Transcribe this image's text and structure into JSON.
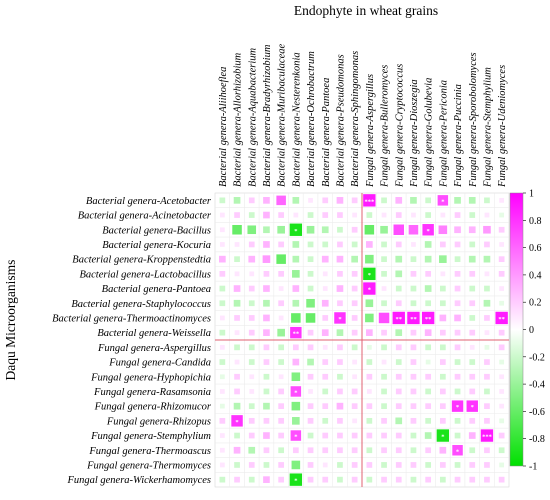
{
  "chart_data": {
    "type": "heatmap",
    "title": "Endophyte in wheat grains",
    "ylabel": "Daqu Microorganisms",
    "columns": [
      "Bacterial genera-Aliihoeflea",
      "Bacterial genera-Allorhizobium",
      "Bacterial genera-Aquabacterium",
      "Bacterial genera-Bradyrhizobium",
      "Bacterial genera-Muribaculaceae",
      "Bacterial genera-Nesterenkonia",
      "Bacterial genera-Ochrobactrum",
      "Bacterial genera-Pantoea",
      "Bacterial genera-Pseudomonas",
      "Bacterial genera-Sphingomonas",
      "Fungal genera-Aspergillus",
      "Fungal genera-Bulleromyces",
      "Fungal genera-Cryptococcus",
      "Fungal genera-Dioszegia",
      "Fungal genera-Golubevia",
      "Fungal genera-Periconia",
      "Fungal genera-Puccinia",
      "Fungal genera-Sporobolomyces",
      "Fungal genera-Stemphylium",
      "Fungal genera-Udeniomyces"
    ],
    "rows": [
      "Bacterial genera-Acetobacter",
      "Bacterial genera-Acinetobacter",
      "Bacterial genera-Bacillus",
      "Bacterial genera-Kocuria",
      "Bacterial genera-Kroppenstedtia",
      "Bacterial genera-Lactobacillus",
      "Bacterial genera-Pantoea",
      "Bacterial genera-Staphylococcus",
      "Bacterial genera-Thermoactinomyces",
      "Bacterial genera-Weissella",
      "Fungal genera-Aspergillus",
      "Fungal genera-Candida",
      "Fungal genera-Hyphopichia",
      "Fungal genera-Rasamsonia",
      "Fungal genera-Rhizomucor",
      "Fungal genera-Rhizopus",
      "Fungal genera-Stemphylium",
      "Fungal genera-Thermoascus",
      "Fungal genera-Thermomyces",
      "Fungal genera-Wickerhamomyces"
    ],
    "values": [
      [
        -0.2,
        -0.3,
        0.2,
        0.3,
        0.6,
        -0.3,
        0.1,
        0.2,
        0.3,
        0.2,
        0.9,
        -0.2,
        0.3,
        -0.3,
        -0.2,
        0.7,
        -0.3,
        -0.3,
        -0.2,
        0.1
      ],
      [
        0.1,
        0.2,
        -0.2,
        0.3,
        0.2,
        0.1,
        -0.2,
        0.2,
        0.2,
        0.1,
        -0.2,
        0.1,
        0.2,
        0.1,
        -0.2,
        0.1,
        0.2,
        -0.2,
        0.1,
        -0.1
      ],
      [
        0.1,
        -0.6,
        -0.5,
        -0.3,
        -0.4,
        -0.9,
        -0.4,
        -0.3,
        -0.2,
        0.2,
        -0.6,
        -0.4,
        0.7,
        0.6,
        0.8,
        0.5,
        0.3,
        0.3,
        0.4,
        0.2
      ],
      [
        0.1,
        0.1,
        0.2,
        0.3,
        0.2,
        -0.3,
        -0.2,
        -0.2,
        0.2,
        -0.2,
        0.3,
        -0.2,
        0.2,
        0.1,
        -0.3,
        0.2,
        0.2,
        -0.2,
        0.2,
        0.1
      ],
      [
        0.3,
        -0.2,
        0.3,
        0.4,
        -0.6,
        -0.3,
        -0.2,
        0.3,
        0.3,
        -0.3,
        -0.5,
        -0.2,
        -0.3,
        -0.2,
        -0.3,
        -0.4,
        -0.2,
        -0.3,
        -0.3,
        0.2
      ],
      [
        0.2,
        0.1,
        0.1,
        0.2,
        0.2,
        -0.4,
        -0.2,
        0.1,
        0.2,
        0.2,
        -0.9,
        -0.2,
        -0.3,
        0.2,
        0.2,
        0.1,
        0.2,
        0.2,
        0.1,
        0.2
      ],
      [
        -0.2,
        0.3,
        0.2,
        0.3,
        0.1,
        0.3,
        -0.2,
        0.1,
        0.3,
        0.2,
        0.9,
        0.1,
        -0.2,
        -0.2,
        -0.3,
        -0.2,
        0.2,
        -0.2,
        -0.2,
        0.1
      ],
      [
        -0.2,
        -0.3,
        -0.2,
        -0.3,
        0.2,
        -0.3,
        -0.5,
        0.3,
        0.2,
        0.2,
        -0.4,
        -0.2,
        0.2,
        -0.2,
        -0.2,
        -0.2,
        0.2,
        0.2,
        -0.3,
        -0.1
      ],
      [
        0.1,
        0.2,
        0.2,
        0.3,
        0.1,
        -0.6,
        -0.6,
        0.2,
        0.8,
        0.2,
        -0.5,
        0.7,
        0.9,
        0.9,
        0.9,
        0.3,
        0.3,
        -0.2,
        0.2,
        0.9
      ],
      [
        -0.2,
        0.1,
        0.2,
        0.3,
        -0.4,
        0.8,
        0.2,
        0.3,
        -0.3,
        0.2,
        0.3,
        0.2,
        -0.3,
        0.2,
        0.3,
        0.2,
        0.2,
        0.2,
        0.1,
        0.2
      ],
      [
        0.1,
        -0.2,
        -0.2,
        0.2,
        -0.2,
        0.2,
        0.2,
        0.1,
        0.2,
        -0.2,
        -0.1,
        -0.2,
        0.2,
        0.2,
        -0.2,
        -0.2,
        0.2,
        0.1,
        -0.1,
        0.2
      ],
      [
        -0.2,
        0.1,
        -0.2,
        0.2,
        -0.2,
        0.3,
        -0.3,
        0.2,
        0.2,
        0.1,
        -0.2,
        0.1,
        -0.2,
        0.2,
        -0.1,
        0.2,
        -0.2,
        -0.2,
        0.2,
        -0.1
      ],
      [
        -0.1,
        0.2,
        0.1,
        -0.2,
        0.1,
        -0.5,
        0.2,
        0.2,
        -0.2,
        0.1,
        0.2,
        -0.2,
        0.2,
        0.2,
        0.2,
        -0.2,
        0.2,
        0.2,
        0.2,
        0.1
      ],
      [
        0.1,
        0.2,
        0.1,
        -0.2,
        0.2,
        0.7,
        0.1,
        -0.2,
        0.2,
        0.2,
        0.1,
        -0.2,
        0.2,
        0.2,
        -0.2,
        0.2,
        -0.2,
        0.2,
        -0.2,
        0.1
      ],
      [
        -0.1,
        -0.3,
        -0.2,
        -0.3,
        0.2,
        -0.5,
        0.2,
        0.2,
        0.3,
        0.2,
        0.2,
        -0.2,
        0.2,
        0.2,
        0.2,
        0.2,
        0.8,
        0.8,
        0.2,
        0.1
      ],
      [
        0.2,
        0.8,
        0.2,
        0.2,
        0.2,
        -0.4,
        0.2,
        -0.2,
        0.2,
        0.1,
        -0.2,
        0.2,
        -0.3,
        0.2,
        -0.2,
        0.2,
        -0.2,
        0.2,
        0.2,
        -0.1
      ],
      [
        0.1,
        -0.2,
        0.2,
        0.3,
        0.2,
        0.7,
        -0.2,
        0.2,
        0.2,
        0.2,
        0.2,
        0.2,
        0.2,
        -0.2,
        -0.3,
        -0.9,
        -0.2,
        0.3,
        0.9,
        0.2
      ],
      [
        0.1,
        0.3,
        -0.3,
        0.2,
        -0.2,
        0.2,
        0.2,
        0.2,
        0.2,
        0.2,
        -0.2,
        0.2,
        0.2,
        -0.2,
        0.2,
        0.3,
        0.7,
        -0.2,
        0.2,
        -0.2
      ],
      [
        0.1,
        -0.2,
        0.2,
        -0.2,
        0.2,
        -0.5,
        0.2,
        0.1,
        -0.2,
        0.2,
        0.2,
        -0.2,
        0.2,
        0.2,
        -0.2,
        0.2,
        -0.2,
        0.2,
        0.2,
        -0.1
      ],
      [
        -0.2,
        0.2,
        -0.2,
        0.3,
        0.2,
        -0.9,
        0.2,
        0.2,
        -0.2,
        0.2,
        -0.2,
        0.2,
        0.2,
        -0.2,
        0.2,
        -0.2,
        0.2,
        0.2,
        0.2,
        0.2
      ]
    ],
    "significance": [
      {
        "row": 0,
        "col": 10,
        "mark": "***"
      },
      {
        "row": 0,
        "col": 15,
        "mark": "*"
      },
      {
        "row": 2,
        "col": 5,
        "mark": "*"
      },
      {
        "row": 2,
        "col": 14,
        "mark": "*"
      },
      {
        "row": 5,
        "col": 10,
        "mark": "*"
      },
      {
        "row": 6,
        "col": 10,
        "mark": "*"
      },
      {
        "row": 8,
        "col": 8,
        "mark": "*"
      },
      {
        "row": 8,
        "col": 12,
        "mark": "**"
      },
      {
        "row": 8,
        "col": 13,
        "mark": "**"
      },
      {
        "row": 8,
        "col": 14,
        "mark": "**"
      },
      {
        "row": 8,
        "col": 19,
        "mark": "**"
      },
      {
        "row": 9,
        "col": 5,
        "mark": "**"
      },
      {
        "row": 13,
        "col": 5,
        "mark": "*"
      },
      {
        "row": 14,
        "col": 16,
        "mark": "*"
      },
      {
        "row": 14,
        "col": 17,
        "mark": "*"
      },
      {
        "row": 15,
        "col": 1,
        "mark": "*"
      },
      {
        "row": 16,
        "col": 5,
        "mark": "*"
      },
      {
        "row": 16,
        "col": 15,
        "mark": "*"
      },
      {
        "row": 16,
        "col": 18,
        "mark": "***"
      },
      {
        "row": 17,
        "col": 16,
        "mark": "*"
      },
      {
        "row": 19,
        "col": 5,
        "mark": "*"
      }
    ],
    "colorscale": {
      "low": "#00e000",
      "mid": "#ffffff",
      "high": "#ff00ff"
    },
    "colorbar": {
      "range": [
        -1,
        1
      ],
      "ticks": [
        "1",
        "0.8",
        "0.6",
        "0.4",
        "0.2",
        "0",
        "-0.2",
        "-0.4",
        "-0.6",
        "-0.8",
        "-1"
      ]
    },
    "divider_color": "#e06070"
  }
}
